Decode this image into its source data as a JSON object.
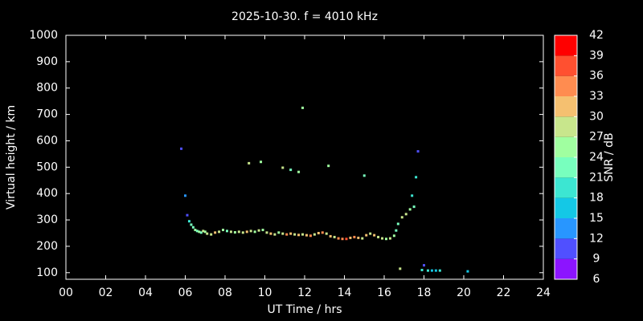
{
  "chart_data": {
    "type": "scatter",
    "title": "2025-10-30. f = 4010 kHz",
    "xlabel": "UT Time / hrs",
    "ylabel": "Virtual height / km",
    "xlim": [
      0,
      24
    ],
    "ylim": [
      75,
      1000
    ],
    "xticks": [
      {
        "value": 0,
        "label": "00"
      },
      {
        "value": 2,
        "label": "02"
      },
      {
        "value": 4,
        "label": "04"
      },
      {
        "value": 6,
        "label": "06"
      },
      {
        "value": 8,
        "label": "08"
      },
      {
        "value": 10,
        "label": "10"
      },
      {
        "value": 12,
        "label": "12"
      },
      {
        "value": 14,
        "label": "14"
      },
      {
        "value": 16,
        "label": "16"
      },
      {
        "value": 18,
        "label": "18"
      },
      {
        "value": 20,
        "label": "20"
      },
      {
        "value": 22,
        "label": "22"
      },
      {
        "value": 24,
        "label": "24"
      }
    ],
    "yticks": [
      100,
      200,
      300,
      400,
      500,
      600,
      700,
      800,
      900,
      1000
    ],
    "colorbar": {
      "label": "SNR / dB",
      "lim": [
        6,
        42
      ],
      "ticks": [
        6,
        9,
        12,
        15,
        18,
        21,
        24,
        27,
        30,
        33,
        36,
        39,
        42
      ],
      "colors": [
        "#8c14ff",
        "#5050ff",
        "#2896ff",
        "#14c8e6",
        "#3ce6d2",
        "#78ffbe",
        "#a0ffa0",
        "#c8e68c",
        "#f5c070",
        "#ff8c50",
        "#ff5030",
        "#ff0000"
      ]
    },
    "x": [
      5.8,
      6.0,
      6.1,
      6.2,
      6.3,
      6.4,
      6.5,
      6.6,
      6.7,
      6.8,
      6.9,
      7.0,
      7.1,
      7.3,
      7.5,
      7.7,
      7.9,
      8.1,
      8.3,
      8.5,
      8.7,
      8.9,
      9.1,
      9.3,
      9.5,
      9.7,
      9.9,
      10.1,
      10.3,
      10.5,
      10.7,
      10.9,
      11.1,
      11.3,
      11.5,
      11.7,
      11.9,
      12.1,
      12.3,
      12.5,
      12.7,
      12.9,
      13.1,
      13.3,
      13.5,
      13.7,
      13.9,
      14.1,
      14.3,
      14.5,
      14.7,
      14.9,
      15.1,
      15.3,
      15.5,
      15.7,
      15.9,
      16.1,
      16.3,
      16.5,
      16.6,
      16.7,
      16.9,
      17.1,
      17.3,
      17.5,
      17.4,
      17.6,
      17.7,
      9.2,
      9.8,
      10.9,
      11.3,
      11.7,
      11.9,
      13.2,
      15.0,
      16.8,
      17.9,
      18.0,
      18.2,
      18.4,
      18.6,
      18.8,
      20.2
    ],
    "y": [
      570,
      392,
      318,
      295,
      282,
      272,
      262,
      258,
      255,
      252,
      258,
      255,
      248,
      245,
      252,
      255,
      262,
      258,
      255,
      253,
      255,
      252,
      255,
      258,
      255,
      260,
      262,
      252,
      248,
      245,
      252,
      248,
      245,
      248,
      245,
      243,
      245,
      242,
      240,
      245,
      250,
      252,
      248,
      238,
      235,
      230,
      228,
      228,
      232,
      235,
      232,
      230,
      242,
      248,
      242,
      235,
      230,
      228,
      230,
      240,
      260,
      285,
      310,
      322,
      340,
      350,
      392,
      462,
      560,
      515,
      520,
      498,
      490,
      482,
      725,
      505,
      468,
      115,
      110,
      128,
      108,
      108,
      108,
      108,
      105
    ],
    "snr": [
      9,
      12,
      9,
      18,
      21,
      21,
      24,
      21,
      24,
      21,
      27,
      24,
      27,
      27,
      30,
      27,
      24,
      21,
      27,
      24,
      27,
      27,
      30,
      27,
      24,
      27,
      24,
      27,
      30,
      27,
      24,
      27,
      33,
      30,
      27,
      30,
      27,
      30,
      33,
      27,
      30,
      33,
      27,
      30,
      27,
      33,
      33,
      36,
      30,
      33,
      30,
      27,
      30,
      27,
      30,
      27,
      27,
      24,
      27,
      24,
      21,
      21,
      27,
      27,
      24,
      21,
      18,
      18,
      9,
      27,
      24,
      27,
      21,
      24,
      24,
      24,
      21,
      27,
      18,
      9,
      18,
      15,
      15,
      18,
      15
    ]
  }
}
